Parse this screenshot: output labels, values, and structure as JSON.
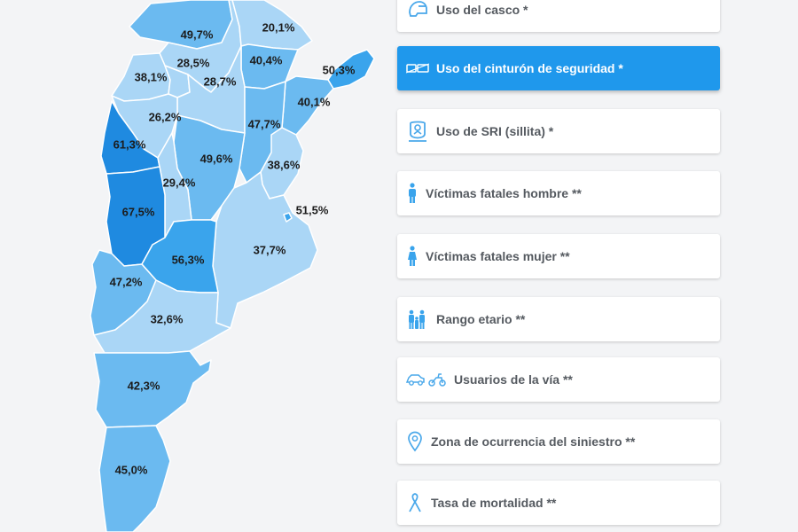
{
  "map": {
    "provinces": [
      {
        "name": "Jujuy",
        "value": "49,7%",
        "fill": "#6bbaf0"
      },
      {
        "name": "Formosa",
        "value": "20,1%",
        "fill": "#aad6f6"
      },
      {
        "name": "Salta",
        "value": "28,5%",
        "fill": "#aad6f6"
      },
      {
        "name": "Chaco",
        "value": "40,4%",
        "fill": "#6bbaf0"
      },
      {
        "name": "Misiones",
        "value": "50,3%",
        "fill": "#3aa4ec"
      },
      {
        "name": "Catamarca",
        "value": "38,1%",
        "fill": "#aad6f6"
      },
      {
        "name": "Santiago del Estero",
        "value": "28,7%",
        "fill": "#aad6f6"
      },
      {
        "name": "Corrientes",
        "value": "40,1%",
        "fill": "#6bbaf0"
      },
      {
        "name": "La Rioja",
        "value": "26,2%",
        "fill": "#aad6f6"
      },
      {
        "name": "Santa Fe",
        "value": "47,7%",
        "fill": "#6bbaf0"
      },
      {
        "name": "San Juan",
        "value": "61,3%",
        "fill": "#1f8ae0"
      },
      {
        "name": "Córdoba",
        "value": "49,6%",
        "fill": "#6bbaf0"
      },
      {
        "name": "Entre Ríos",
        "value": "38,6%",
        "fill": "#aad6f6"
      },
      {
        "name": "San Luis",
        "value": "29,4%",
        "fill": "#aad6f6"
      },
      {
        "name": "Mendoza",
        "value": "67,5%",
        "fill": "#1f8ae0"
      },
      {
        "name": "CABA",
        "value": "51,5%",
        "fill": "#3aa4ec"
      },
      {
        "name": "Buenos Aires",
        "value": "37,7%",
        "fill": "#aad6f6"
      },
      {
        "name": "La Pampa",
        "value": "56,3%",
        "fill": "#3aa4ec"
      },
      {
        "name": "Neuquén",
        "value": "47,2%",
        "fill": "#6bbaf0"
      },
      {
        "name": "Río Negro",
        "value": "32,6%",
        "fill": "#aad6f6"
      },
      {
        "name": "Chubut",
        "value": "42,3%",
        "fill": "#6bbaf0"
      },
      {
        "name": "Santa Cruz",
        "value": "45,0%",
        "fill": "#6bbaf0"
      },
      {
        "name": "Tucumán",
        "value": "",
        "fill": "#aad6f6"
      }
    ]
  },
  "menu": {
    "items": [
      {
        "label": "Uso del casco *",
        "icon": "helmet-icon",
        "active": false
      },
      {
        "label": "Uso del cinturón de seguridad *",
        "icon": "seatbelt-icon",
        "active": true
      },
      {
        "label": "Uso de SRI (sillita) *",
        "icon": "child-seat-icon",
        "active": false
      },
      {
        "label": "Víctimas fatales hombre **",
        "icon": "man-icon",
        "active": false
      },
      {
        "label": "Víctimas fatales mujer **",
        "icon": "woman-icon",
        "active": false
      },
      {
        "label": "Rango etario **",
        "icon": "family-icon",
        "active": false
      },
      {
        "label": "Usuarios de la vía **",
        "icon": "car-moto-icon",
        "active": false
      },
      {
        "label": "Zona de ocurrencia del siniestro **",
        "icon": "location-pin-icon",
        "active": false
      },
      {
        "label": "Tasa de mortalidad **",
        "icon": "ribbon-icon",
        "active": false
      }
    ]
  }
}
